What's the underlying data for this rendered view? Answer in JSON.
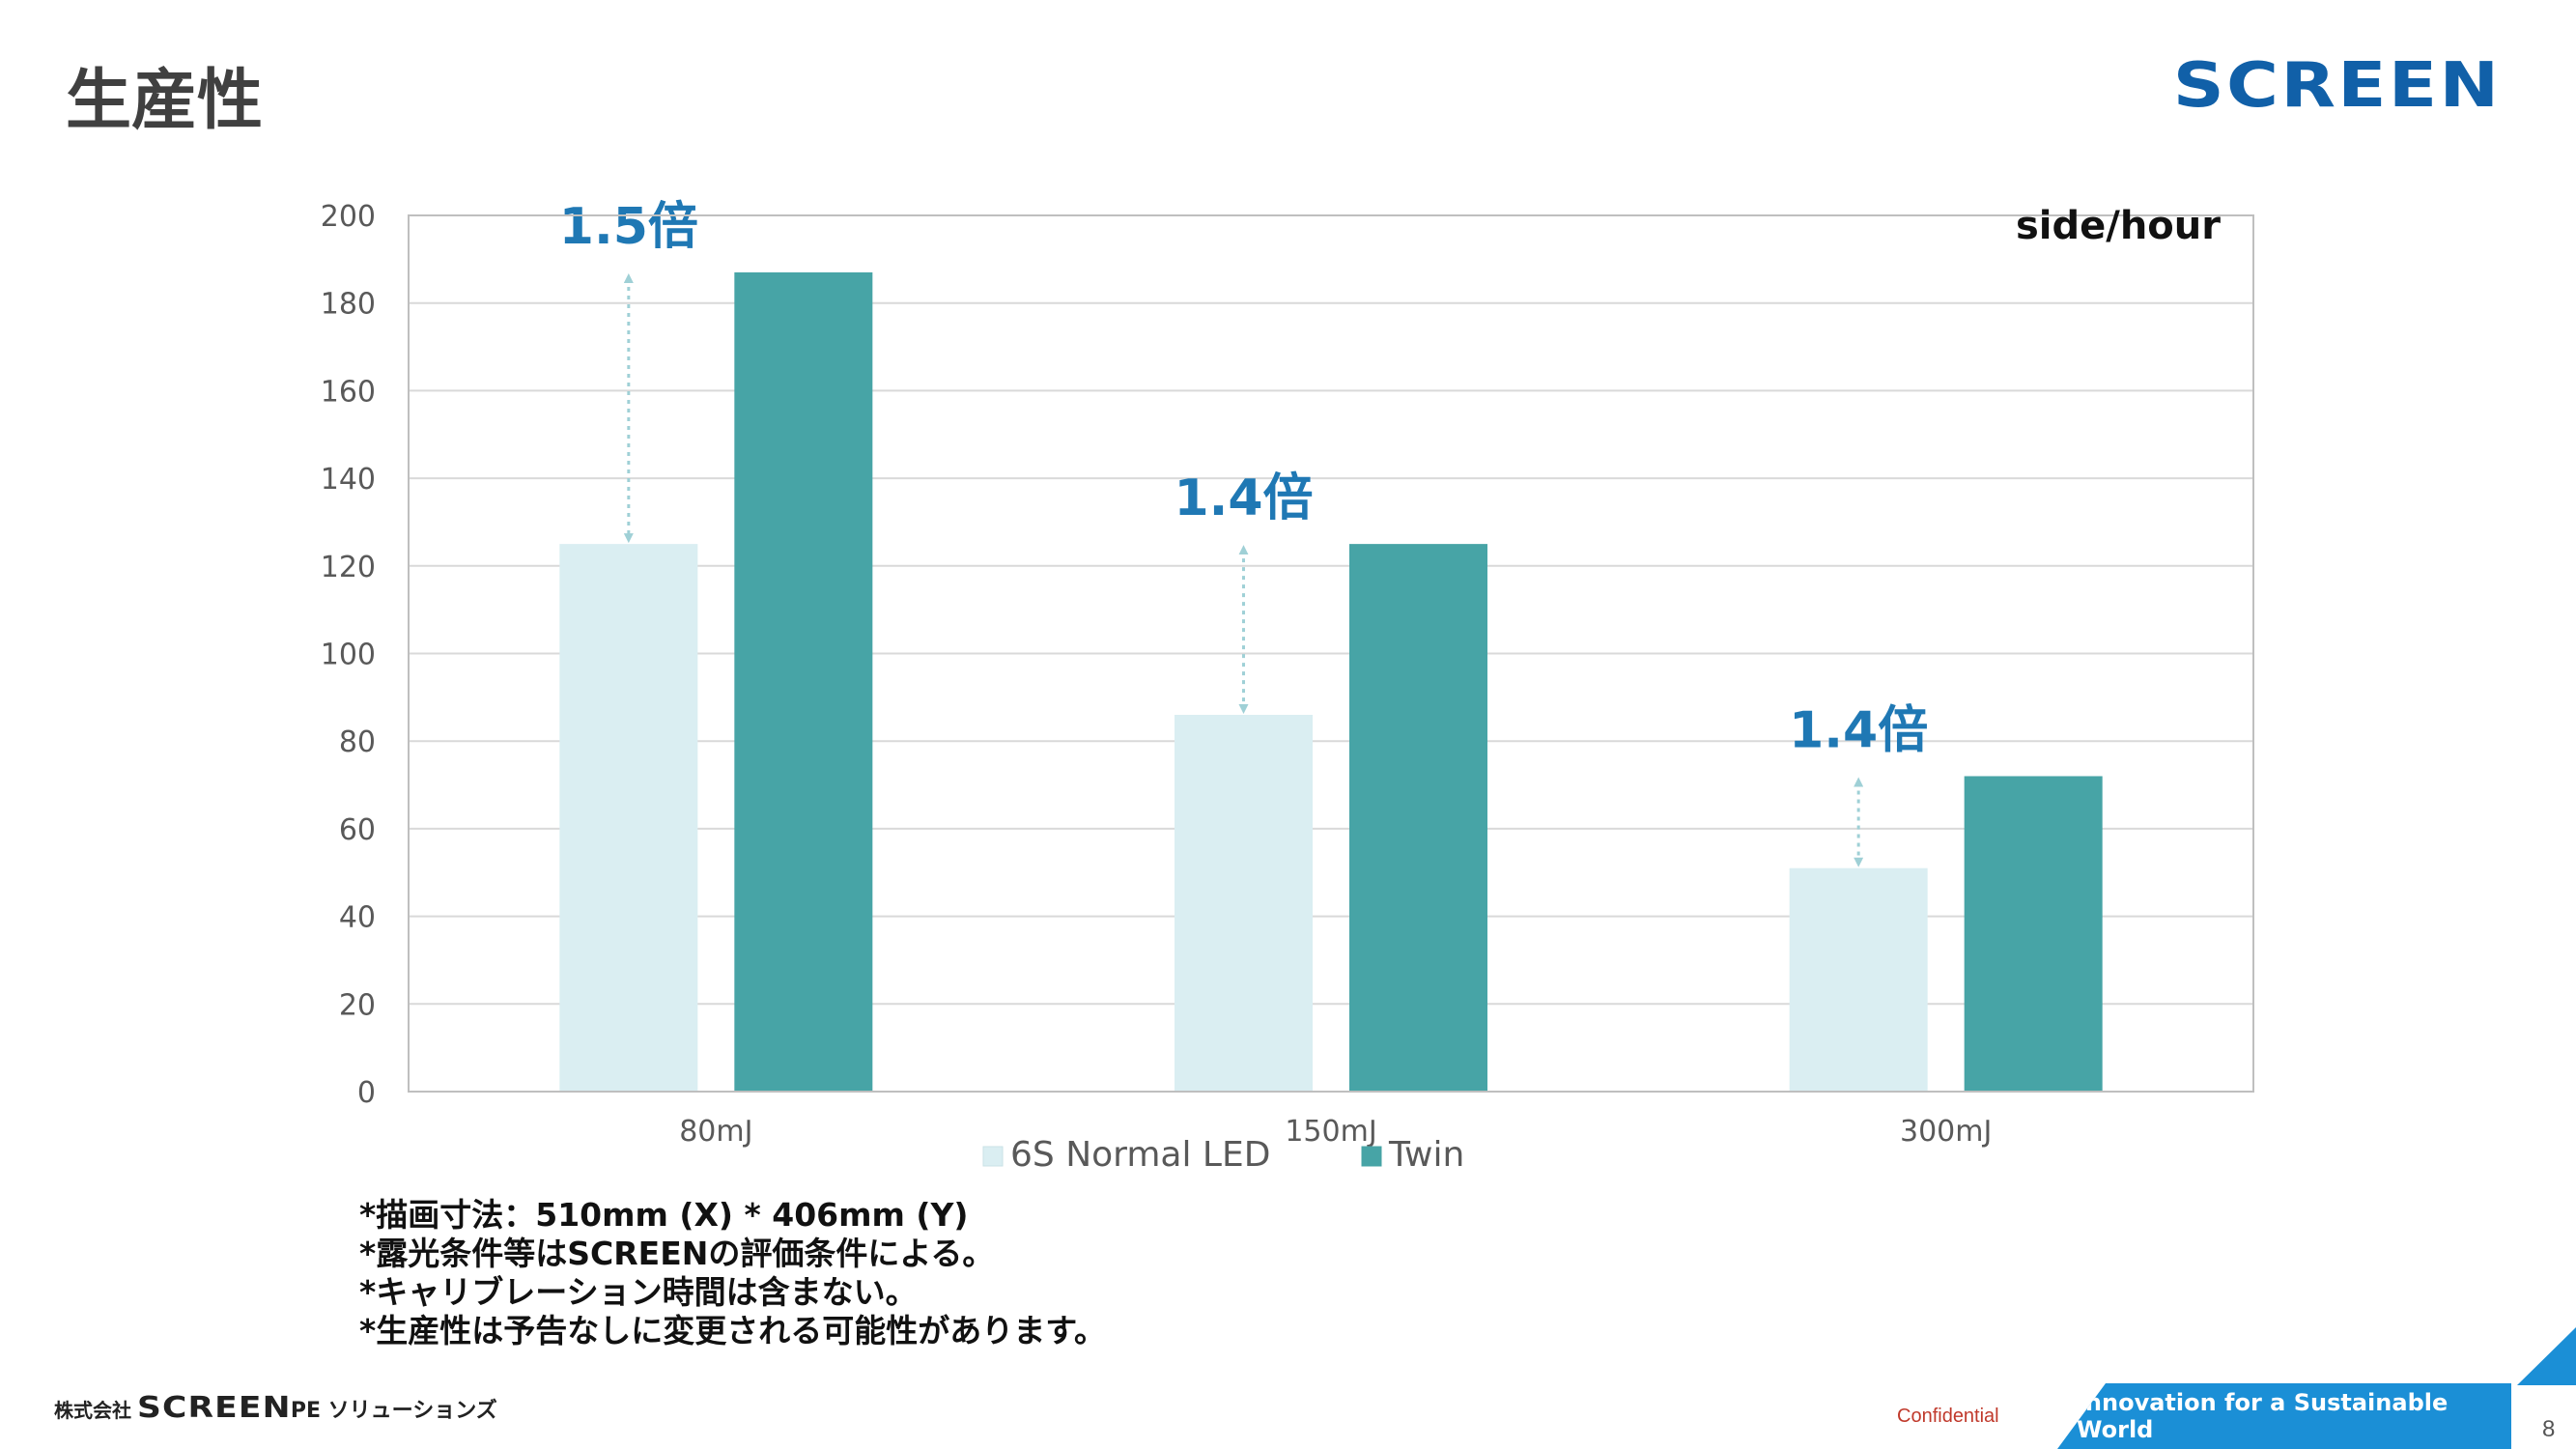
{
  "slide": {
    "title": "生産性",
    "logo": "SCREEN",
    "page_number": "8"
  },
  "chart_data": {
    "type": "bar",
    "categories": [
      "80mJ",
      "150mJ",
      "300mJ"
    ],
    "series": [
      {
        "name": "6S Normal LED",
        "values": [
          125,
          86,
          51
        ],
        "color": "#daeef2"
      },
      {
        "name": "Twin",
        "values": [
          187,
          125,
          72
        ],
        "color": "#47a4a6"
      }
    ],
    "ylim": [
      0,
      200
    ],
    "yticks": [
      0,
      20,
      40,
      60,
      80,
      100,
      120,
      140,
      160,
      180,
      200
    ],
    "unit_label": "side/hour",
    "annotations": [
      "1.5倍",
      "1.4倍",
      "1.4倍"
    ],
    "annotation_color": "#1f78b4",
    "grid": true,
    "legend_position": "bottom"
  },
  "notes": [
    "*描画寸法：510mm (X) * 406mm (Y)",
    "*露光条件等はSCREENの評価条件による。",
    "*キャリブレーション時間は含まない。",
    "*生産性は予告なしに変更される可能性があります。"
  ],
  "footer": {
    "corp_prefix": "株式会社",
    "brand": "SCREEN",
    "division": "PE ソリューションズ",
    "confidential": "Confidential",
    "tagline": "Innovation for a Sustainable World"
  }
}
